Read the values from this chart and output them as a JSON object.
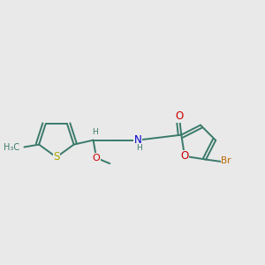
{
  "bg": "#e9e9e9",
  "bond_color": "#3a7a6a",
  "bw": 1.4,
  "dbo": 0.012,
  "colors": {
    "S": "#aaaa00",
    "O": "#cc0000",
    "N": "#0000cc",
    "Br": "#bb6600",
    "C": "#3a7a6a",
    "H": "#3a7a6a"
  },
  "fs": 8.0,
  "fs_sm": 6.5,
  "xlim": [
    0.0,
    1.0
  ],
  "ylim": [
    0.28,
    0.82
  ]
}
